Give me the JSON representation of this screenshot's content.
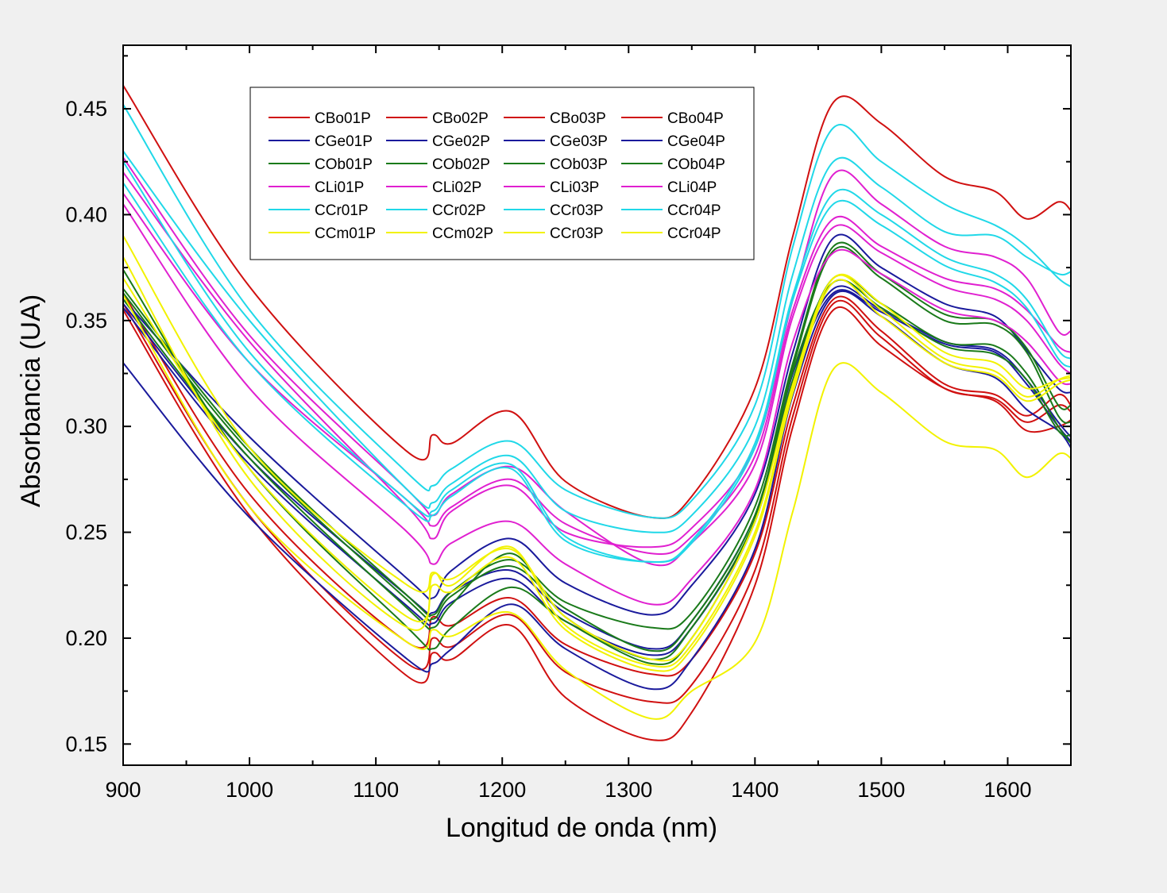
{
  "chart_data": {
    "type": "line",
    "title": "",
    "xlabel": "Longitud de onda (nm)",
    "ylabel": "Absorbancia (UA)",
    "xlim": [
      900,
      1650
    ],
    "ylim": [
      0.14,
      0.48
    ],
    "xticks": [
      900,
      1000,
      1100,
      1200,
      1300,
      1400,
      1500,
      1600
    ],
    "xtick_labels": [
      "900",
      "1000",
      "1100",
      "1200",
      "1300",
      "1400",
      "1500",
      "1600"
    ],
    "yticks": [
      0.15,
      0.2,
      0.25,
      0.3,
      0.35,
      0.4,
      0.45
    ],
    "ytick_labels": [
      "0.15",
      "0.20",
      "0.25",
      "0.30",
      "0.35",
      "0.40",
      "0.45"
    ],
    "grid": false,
    "legend_position": "top-left",
    "legend_columns": 4,
    "x": [
      900,
      1000,
      1125,
      1145,
      1160,
      1207,
      1250,
      1318,
      1350,
      1400,
      1430,
      1462,
      1500,
      1550,
      1590,
      1615,
      1640,
      1650
    ],
    "series": [
      {
        "name": "CBo01P",
        "color": "#d01010",
        "values": [
          0.461,
          0.366,
          0.288,
          0.296,
          0.292,
          0.307,
          0.274,
          0.257,
          0.267,
          0.318,
          0.39,
          0.453,
          0.443,
          0.418,
          0.411,
          0.398,
          0.406,
          0.402
        ]
      },
      {
        "name": "CBo02P",
        "color": "#d01010",
        "values": [
          0.363,
          0.268,
          0.198,
          0.21,
          0.206,
          0.219,
          0.197,
          0.183,
          0.19,
          0.24,
          0.31,
          0.36,
          0.345,
          0.32,
          0.315,
          0.305,
          0.315,
          0.31
        ]
      },
      {
        "name": "CBo03P",
        "color": "#d01010",
        "values": [
          0.355,
          0.258,
          0.182,
          0.193,
          0.19,
          0.206,
          0.172,
          0.152,
          0.165,
          0.225,
          0.3,
          0.355,
          0.338,
          0.318,
          0.312,
          0.298,
          0.3,
          0.303
        ]
      },
      {
        "name": "CBo04P",
        "color": "#d01010",
        "values": [
          0.358,
          0.262,
          0.188,
          0.2,
          0.196,
          0.211,
          0.184,
          0.17,
          0.178,
          0.232,
          0.305,
          0.358,
          0.342,
          0.318,
          0.313,
          0.302,
          0.31,
          0.307
        ]
      },
      {
        "name": "CGe01P",
        "color": "#1a1a9c",
        "values": [
          0.33,
          0.257,
          0.19,
          0.188,
          0.195,
          0.216,
          0.195,
          0.176,
          0.19,
          0.242,
          0.315,
          0.362,
          0.352,
          0.33,
          0.323,
          0.308,
          0.298,
          0.29
        ]
      },
      {
        "name": "CGe02P",
        "color": "#1a1a9c",
        "values": [
          0.36,
          0.295,
          0.228,
          0.219,
          0.232,
          0.247,
          0.226,
          0.211,
          0.225,
          0.268,
          0.335,
          0.389,
          0.375,
          0.358,
          0.352,
          0.336,
          0.318,
          0.316
        ]
      },
      {
        "name": "CGe03P",
        "color": "#1a1a9c",
        "values": [
          0.358,
          0.285,
          0.22,
          0.212,
          0.222,
          0.232,
          0.212,
          0.195,
          0.208,
          0.258,
          0.325,
          0.365,
          0.355,
          0.34,
          0.336,
          0.322,
          0.302,
          0.295
        ]
      },
      {
        "name": "CGe04P",
        "color": "#1a1a9c",
        "values": [
          0.356,
          0.282,
          0.215,
          0.207,
          0.217,
          0.228,
          0.208,
          0.192,
          0.205,
          0.255,
          0.322,
          0.363,
          0.354,
          0.339,
          0.335,
          0.32,
          0.3,
          0.293
        ]
      },
      {
        "name": "COb01P",
        "color": "#1a7a1a",
        "values": [
          0.374,
          0.28,
          0.205,
          0.195,
          0.205,
          0.224,
          0.208,
          0.188,
          0.2,
          0.255,
          0.322,
          0.37,
          0.358,
          0.34,
          0.338,
          0.325,
          0.3,
          0.292
        ]
      },
      {
        "name": "COb02P",
        "color": "#1a7a1a",
        "values": [
          0.365,
          0.29,
          0.22,
          0.211,
          0.222,
          0.237,
          0.217,
          0.205,
          0.212,
          0.262,
          0.33,
          0.385,
          0.372,
          0.353,
          0.35,
          0.337,
          0.31,
          0.31
        ]
      },
      {
        "name": "COb03P",
        "color": "#1a7a1a",
        "values": [
          0.363,
          0.288,
          0.218,
          0.209,
          0.22,
          0.234,
          0.214,
          0.194,
          0.208,
          0.258,
          0.328,
          0.383,
          0.37,
          0.35,
          0.348,
          0.335,
          0.305,
          0.302
        ]
      },
      {
        "name": "COb04P",
        "color": "#1a7a1a",
        "values": [
          0.36,
          0.285,
          0.214,
          0.205,
          0.216,
          0.24,
          0.21,
          0.19,
          0.205,
          0.256,
          0.326,
          0.368,
          0.356,
          0.338,
          0.334,
          0.322,
          0.298,
          0.296
        ]
      },
      {
        "name": "CLi01P",
        "color": "#e020d0",
        "values": [
          0.42,
          0.34,
          0.262,
          0.247,
          0.26,
          0.272,
          0.25,
          0.243,
          0.252,
          0.29,
          0.36,
          0.419,
          0.405,
          0.385,
          0.38,
          0.37,
          0.345,
          0.345
        ]
      },
      {
        "name": "CLi02P",
        "color": "#e020d0",
        "values": [
          0.427,
          0.343,
          0.27,
          0.258,
          0.268,
          0.281,
          0.26,
          0.235,
          0.245,
          0.282,
          0.352,
          0.394,
          0.382,
          0.366,
          0.36,
          0.35,
          0.33,
          0.325
        ]
      },
      {
        "name": "CLi03P",
        "color": "#e020d0",
        "values": [
          0.405,
          0.318,
          0.25,
          0.235,
          0.245,
          0.255,
          0.235,
          0.216,
          0.228,
          0.27,
          0.34,
          0.382,
          0.372,
          0.355,
          0.35,
          0.34,
          0.322,
          0.32
        ]
      },
      {
        "name": "CLi04P",
        "color": "#e020d0",
        "values": [
          0.41,
          0.33,
          0.265,
          0.253,
          0.262,
          0.275,
          0.254,
          0.24,
          0.248,
          0.286,
          0.355,
          0.398,
          0.385,
          0.37,
          0.365,
          0.355,
          0.338,
          0.335
        ]
      },
      {
        "name": "CCr01P",
        "color": "#20d8e8",
        "values": [
          0.452,
          0.355,
          0.278,
          0.272,
          0.28,
          0.293,
          0.27,
          0.257,
          0.265,
          0.31,
          0.385,
          0.441,
          0.425,
          0.405,
          0.395,
          0.385,
          0.37,
          0.366
        ]
      },
      {
        "name": "CCr02P",
        "color": "#20d8e8",
        "values": [
          0.43,
          0.35,
          0.27,
          0.264,
          0.273,
          0.286,
          0.26,
          0.25,
          0.258,
          0.3,
          0.372,
          0.425,
          0.413,
          0.392,
          0.39,
          0.38,
          0.372,
          0.373
        ]
      },
      {
        "name": "CCr03P",
        "color": "#20d8e8",
        "values": [
          0.425,
          0.335,
          0.265,
          0.26,
          0.27,
          0.282,
          0.248,
          0.236,
          0.246,
          0.292,
          0.362,
          0.41,
          0.4,
          0.38,
          0.372,
          0.36,
          0.336,
          0.332
        ]
      },
      {
        "name": "CCr04P",
        "color": "#20d8e8",
        "values": [
          0.415,
          0.33,
          0.262,
          0.258,
          0.267,
          0.28,
          0.246,
          0.236,
          0.245,
          0.29,
          0.36,
          0.405,
          0.395,
          0.376,
          0.368,
          0.356,
          0.332,
          0.328
        ]
      },
      {
        "name": "CCm01P",
        "color": "#f2f200",
        "values": [
          0.39,
          0.29,
          0.225,
          0.231,
          0.228,
          0.242,
          0.21,
          0.19,
          0.2,
          0.255,
          0.32,
          0.37,
          0.358,
          0.335,
          0.33,
          0.318,
          0.322,
          0.323
        ]
      },
      {
        "name": "CCm02P",
        "color": "#f2f200",
        "values": [
          0.38,
          0.275,
          0.205,
          0.23,
          0.225,
          0.243,
          0.206,
          0.187,
          0.197,
          0.25,
          0.318,
          0.37,
          0.355,
          0.332,
          0.326,
          0.314,
          0.322,
          0.324
        ]
      },
      {
        "name": "CCr03P",
        "color": "#f2f200",
        "values": [
          0.362,
          0.262,
          0.198,
          0.204,
          0.201,
          0.212,
          0.185,
          0.162,
          0.175,
          0.198,
          0.26,
          0.327,
          0.316,
          0.293,
          0.289,
          0.276,
          0.287,
          0.285
        ]
      },
      {
        "name": "CCr04P",
        "color": "#f2f200",
        "values": [
          0.37,
          0.28,
          0.21,
          0.225,
          0.222,
          0.238,
          0.204,
          0.185,
          0.195,
          0.248,
          0.316,
          0.368,
          0.352,
          0.33,
          0.324,
          0.312,
          0.32,
          0.322
        ]
      }
    ]
  }
}
